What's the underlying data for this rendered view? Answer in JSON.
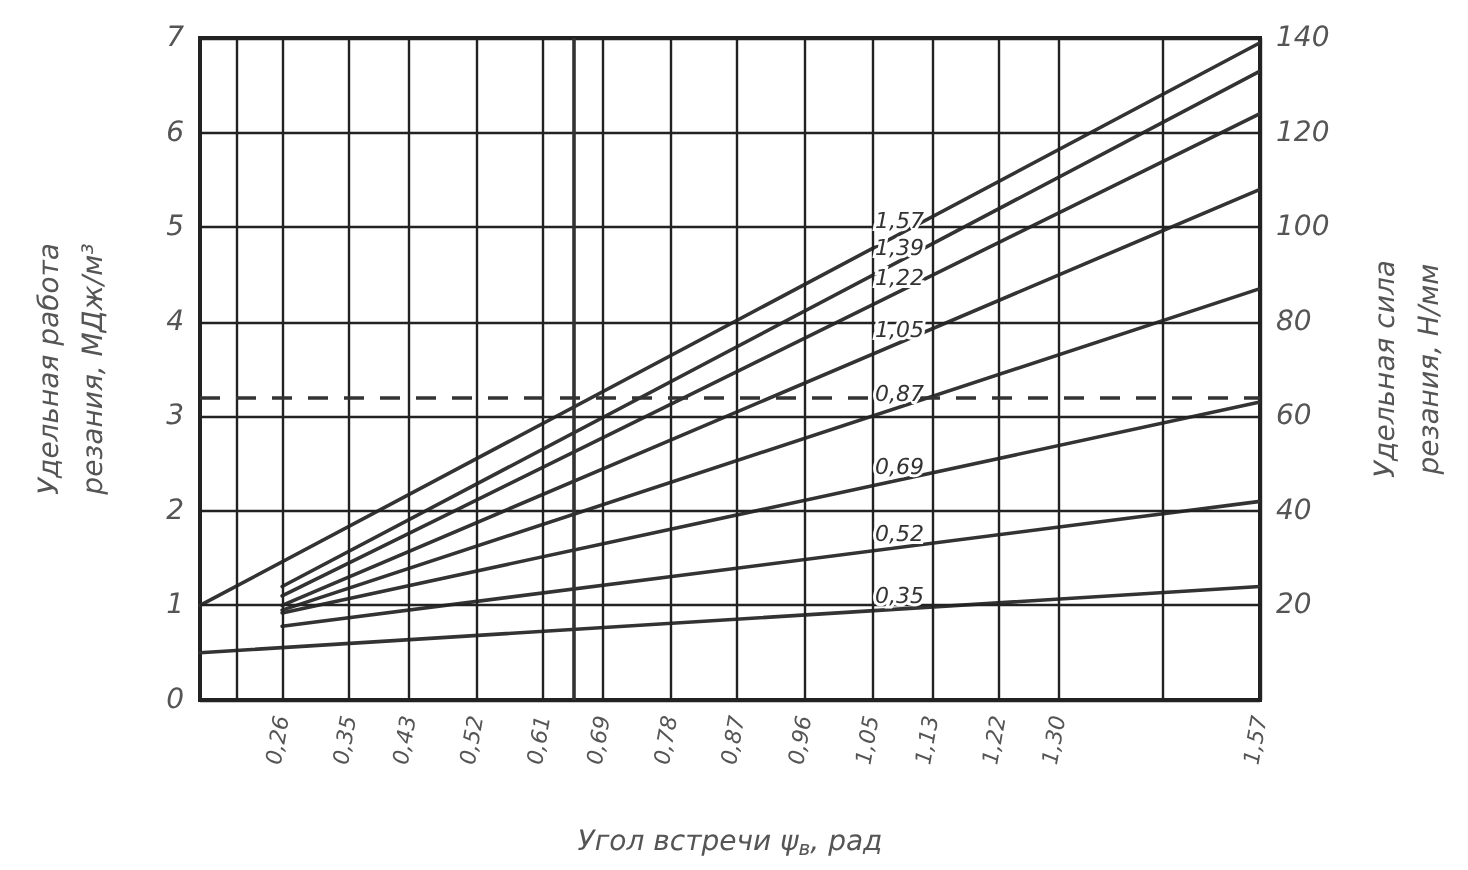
{
  "chart_data": {
    "type": "line",
    "xlabel": "Угол встречи ψ$_{в}$, рад",
    "ylabel": "Удельная работа\nрезания, МДж/м³",
    "y2label": "Удельная сила\nрезания, Н/мм",
    "xlim": [
      0.15,
      1.57
    ],
    "xticks": [
      {
        "value": 0.2,
        "label": null
      },
      {
        "value": 0.26,
        "label": "0,26"
      },
      {
        "value": 0.35,
        "label": "0,35"
      },
      {
        "value": 0.43,
        "label": "0,43"
      },
      {
        "value": 0.52,
        "label": "0,52"
      },
      {
        "value": 0.61,
        "label": "0,61"
      },
      {
        "value": 0.69,
        "label": "0,69"
      },
      {
        "value": 0.78,
        "label": "0,78"
      },
      {
        "value": 0.87,
        "label": "0,87"
      },
      {
        "value": 0.96,
        "label": "0,96"
      },
      {
        "value": 1.05,
        "label": "1,05"
      },
      {
        "value": 1.13,
        "label": "1,13"
      },
      {
        "value": 1.22,
        "label": "1,22"
      },
      {
        "value": 1.3,
        "label": "1,30"
      },
      {
        "value": 1.44,
        "label": null
      },
      {
        "value": 1.57,
        "label": "1,57"
      }
    ],
    "ylim": [
      0,
      7
    ],
    "yticks": [
      0,
      1,
      2,
      3,
      4,
      5,
      6,
      7
    ],
    "y2lim": [
      0,
      140
    ],
    "y2ticks": [
      20,
      40,
      60,
      80,
      100,
      120,
      140
    ],
    "grid": true,
    "legend": false,
    "marker": "none",
    "line_style": "solid",
    "series": [
      {
        "name": "1,57",
        "color": "#333333",
        "x": [
          0.15,
          1.57
        ],
        "values": [
          1.0,
          6.95
        ]
      },
      {
        "name": "1,39",
        "color": "#333333",
        "x": [
          0.26,
          1.57
        ],
        "values": [
          1.2,
          6.65
        ]
      },
      {
        "name": "1,22",
        "color": "#333333",
        "x": [
          0.26,
          1.57
        ],
        "values": [
          1.1,
          6.2
        ]
      },
      {
        "name": "1,05",
        "color": "#333333",
        "x": [
          0.26,
          1.57
        ],
        "values": [
          1.0,
          5.4
        ]
      },
      {
        "name": "0,87",
        "color": "#333333",
        "x": [
          0.26,
          1.57
        ],
        "values": [
          0.95,
          4.35
        ]
      },
      {
        "name": "0,69",
        "color": "#333333",
        "x": [
          0.26,
          1.57
        ],
        "values": [
          0.92,
          3.15
        ]
      },
      {
        "name": "0,52",
        "color": "#333333",
        "x": [
          0.26,
          1.57
        ],
        "values": [
          0.78,
          2.1
        ]
      },
      {
        "name": "0,35",
        "color": "#333333",
        "x": [
          0.15,
          1.57
        ],
        "values": [
          0.5,
          1.2
        ]
      }
    ],
    "ref_lines": [
      {
        "axis": "y",
        "value": 3.2,
        "line_style": "dashed",
        "color": "#333333"
      },
      {
        "axis": "x",
        "value": 0.65,
        "line_style": "solid",
        "color": "#333333"
      }
    ]
  }
}
